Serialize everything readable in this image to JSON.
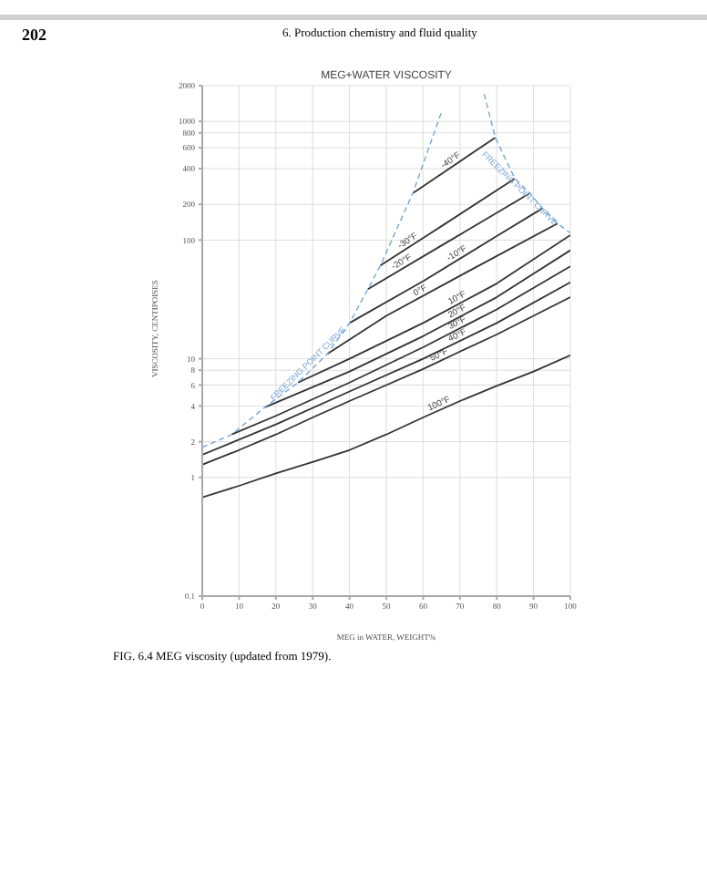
{
  "chart_data": {
    "type": "line",
    "title": "MEG+WATER VISCOSITY",
    "xlabel": "MEG in WATER, WEIGHT%",
    "ylabel": "VISCOSITY, CENTIPOISES",
    "annotations": [
      "202",
      "6. Production chemistry and fluid quality",
      "FIG. 6.4 MEG viscosity (updated from 1979)."
    ],
    "xlim": [
      0,
      100
    ],
    "xticks": [
      0,
      10,
      20,
      30,
      40,
      50,
      60,
      70,
      80,
      90,
      100
    ],
    "ylim": [
      0.1,
      2000
    ],
    "yticks": [
      0.1,
      1,
      2,
      4,
      6,
      8,
      10,
      100,
      200,
      400,
      600,
      800,
      1000,
      2000
    ],
    "log": true,
    "grid": true,
    "legend": false,
    "marker": "none",
    "series": [
      {
        "name": "-40°F",
        "color": "#333333",
        "line_style": "solid",
        "x": [
          57.2,
          79.6
        ],
        "values": [
          248,
          731
        ]
      },
      {
        "name": "-30°F",
        "color": "#333333",
        "line_style": "solid",
        "x": [
          48.4,
          65,
          84.9
        ],
        "values": [
          61,
          131,
          330
        ]
      },
      {
        "name": "-20°F",
        "color": "#333333",
        "line_style": "solid",
        "x": [
          45,
          65,
          89
        ],
        "values": [
          38.6,
          90,
          248
        ]
      },
      {
        "name": "-10°F",
        "color": "#333333",
        "line_style": "solid",
        "x": [
          40,
          60,
          80,
          92.4
        ],
        "values": [
          20,
          45,
          108,
          185
        ]
      },
      {
        "name": "0°F",
        "color": "#333333",
        "line_style": "solid",
        "x": [
          34,
          50,
          70,
          96.5
        ],
        "values": [
          11,
          23,
          50,
          138
        ]
      },
      {
        "name": "10°F",
        "color": "#333333",
        "line_style": "solid",
        "x": [
          26,
          40,
          60,
          80,
          100
        ],
        "values": [
          6.3,
          10,
          20,
          43,
          110
        ]
      },
      {
        "name": "20°F",
        "color": "#333333",
        "line_style": "solid",
        "x": [
          17,
          40,
          60,
          80,
          100
        ],
        "values": [
          3.9,
          7.8,
          15.5,
          33,
          82
        ]
      },
      {
        "name": "30°F",
        "color": "#333333",
        "line_style": "solid",
        "x": [
          8,
          20,
          40,
          60,
          80,
          100
        ],
        "values": [
          2.3,
          3.3,
          6.3,
          12.5,
          26,
          60
        ]
      },
      {
        "name": "40°F",
        "color": "#333333",
        "line_style": "solid",
        "x": [
          0,
          20,
          40,
          60,
          80,
          100
        ],
        "values": [
          1.55,
          2.8,
          5.3,
          10,
          20,
          44
        ]
      },
      {
        "name": "50°F",
        "color": "#333333",
        "line_style": "solid",
        "x": [
          0,
          10,
          20,
          30,
          40,
          50,
          60,
          70,
          80,
          90,
          100
        ],
        "values": [
          1.28,
          1.7,
          2.3,
          3.2,
          4.4,
          6,
          8.2,
          11.5,
          16,
          23,
          33
        ]
      },
      {
        "name": "100°F",
        "color": "#333333",
        "line_style": "solid",
        "x": [
          0,
          10,
          20,
          30,
          40,
          50,
          60,
          70,
          80,
          90,
          100
        ],
        "values": [
          0.68,
          0.85,
          1.08,
          1.35,
          1.7,
          2.3,
          3.2,
          4.4,
          5.9,
          7.8,
          10.7
        ]
      },
      {
        "name": "FREEZING POINT CURVE",
        "color": "#7aa6d6",
        "line_style": "dashed",
        "x": [
          0,
          8,
          17,
          26,
          34,
          40,
          45,
          48.4,
          57.2,
          65
        ],
        "values": [
          1.79,
          2.3,
          3.9,
          6.3,
          11,
          20,
          38.6,
          61,
          248,
          1200
        ]
      },
      {
        "name": "FREEZING POINT CURVE",
        "color": "#7aa6d6",
        "line_style": "dashed",
        "x": [
          76.6,
          79.6,
          84.9,
          89,
          92.4,
          96.5,
          100
        ],
        "values": [
          1700,
          731,
          330,
          248,
          185,
          138,
          115
        ]
      }
    ]
  }
}
